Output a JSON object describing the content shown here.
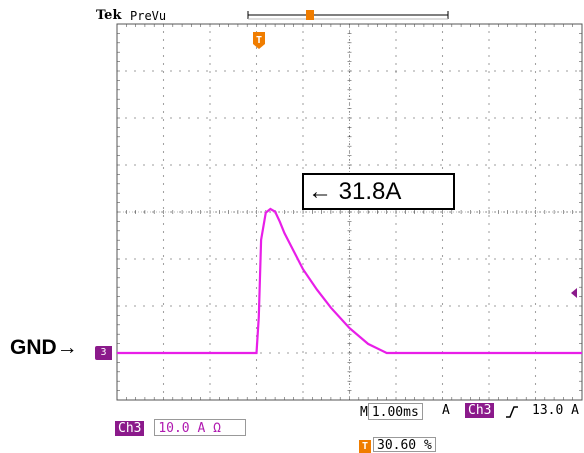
{
  "header": {
    "brand": "Tek",
    "mode": "PreVu",
    "trigger_marker": "T"
  },
  "annotations": {
    "peak_label": "← 31.8A",
    "ground_label": "GND→"
  },
  "channel_marker": "3",
  "footer": {
    "timebase_prefix": "M",
    "timebase": "1.00ms",
    "trigger_mode": "A",
    "trigger_channel": "Ch3",
    "trigger_slope_icon": "rising-edge-icon",
    "trigger_level": "13.0 A",
    "channel_badge": "Ch3",
    "channel_scale": "10.0 A Ω",
    "trigger_position_icon": "T",
    "trigger_position": "30.60 %"
  },
  "colors": {
    "trace": "#e81ee8",
    "trigger": "#f07d00",
    "channel": "#8b1a8b",
    "grid": "#555555"
  },
  "chart_data": {
    "type": "line",
    "title": "",
    "xlabel": "",
    "ylabel": "",
    "x_unit": "ms",
    "y_unit": "A",
    "xlim": [
      0,
      10
    ],
    "ylim": [
      -10,
      70
    ],
    "grid": true,
    "annotation": "31.8A",
    "series": [
      {
        "x": [
          0,
          3.0,
          3.05,
          3.1,
          3.2,
          3.3,
          3.4,
          3.5,
          3.6,
          3.8,
          4.0,
          4.3,
          4.6,
          5.0,
          5.4,
          5.8,
          6.2,
          10
        ],
        "y": [
          0,
          0,
          8,
          25,
          31,
          31.8,
          31.2,
          29,
          26.5,
          22.5,
          18.5,
          14,
          10,
          5.5,
          2,
          0,
          0,
          0
        ]
      }
    ]
  }
}
